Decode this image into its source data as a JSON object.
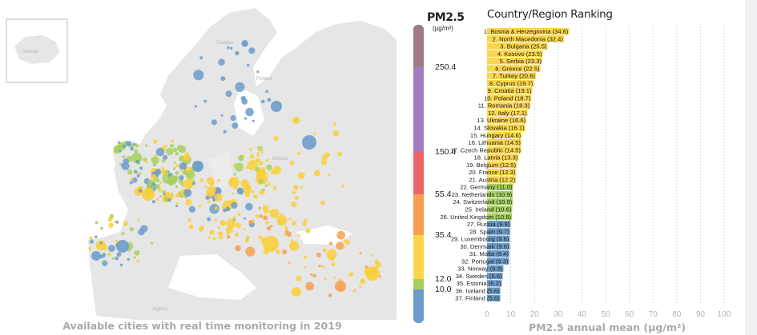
{
  "map": {
    "caption": "Available cities with real time monitoring in 2019",
    "country_labels": [
      "Iceland",
      "Sweden",
      "Finland",
      "Belarus",
      "Algeria"
    ]
  },
  "scale": {
    "title": "PM2.5",
    "unit": "(µg/m³)",
    "thresholds": [
      "250.4",
      "150.4",
      "55.4",
      "35.4",
      "12.0",
      "10.0"
    ],
    "band_colors": [
      "#a27a86",
      "#a27cbe",
      "#ef6464",
      "#f6a04f",
      "#fbd64a",
      "#a8d060",
      "#6c9ccb"
    ]
  },
  "chart_data": {
    "type": "bar",
    "orientation": "horizontal",
    "title": "Country/Region Ranking",
    "xlabel": "PM2.5 annual mean (µg/m³)",
    "xlim": [
      0,
      100
    ],
    "xticks": [
      "0",
      "10",
      "20",
      "30",
      "40",
      "50",
      "60",
      "70",
      "80",
      "90",
      "100"
    ],
    "grid": true,
    "categories": [
      "Bosnia & Herzegovina",
      "North Macedonia",
      "Bulgaria",
      "Kosovo",
      "Serbia",
      "Greece",
      "Turkey",
      "Cyprus",
      "Croatia",
      "Poland",
      "Romania",
      "Italy",
      "Ukraine",
      "Slovakia",
      "Hungary",
      "Lithuania",
      "Czech Republic",
      "Latvia",
      "Belgium",
      "France",
      "Austria",
      "Germany",
      "Netherlands",
      "Switzerland",
      "Ireland",
      "United Kingdom",
      "Russia",
      "Spain",
      "Luxembourg",
      "Denmark",
      "Malta",
      "Portugal",
      "Norway",
      "Sweden",
      "Estonia",
      "Iceland",
      "Finland"
    ],
    "values": [
      34.6,
      32.4,
      25.5,
      23.5,
      23.3,
      22.5,
      20.6,
      19.7,
      19.1,
      18.7,
      18.3,
      17.1,
      16.6,
      16.1,
      14.6,
      14.5,
      14.5,
      13.3,
      12.5,
      12.3,
      12.2,
      11.0,
      10.9,
      10.9,
      10.6,
      10.5,
      9.9,
      9.7,
      9.6,
      9.6,
      9.4,
      9.3,
      6.9,
      6.6,
      6.2,
      5.6,
      5.6
    ],
    "bar_labels": [
      "1. Bosnia & Herzegovina (34.6)",
      "2. North Macedonia (32.4)",
      "3. Bulgaria (25.5)",
      "4. Kosovo (23.5)",
      "5. Serbia (23.3)",
      "6. Greece (22.5)",
      "7. Turkey (20.6)",
      "8. Cyprus (19.7)",
      "9. Croatia (19.1)",
      "10. Poland (18.7)",
      "11. Romania (18.3)",
      "12. Italy (17.1)",
      "13. Ukraine (16.6)",
      "14. Slovakia (16.1)",
      "15. Hungary (14.6)",
      "16. Lithuania (14.5)",
      "17. Czech Republic (14.5)",
      "18. Latvia (13.3)",
      "19. Belgium (12.5)",
      "20. France (12.3)",
      "21. Austria (12.2)",
      "22. Germany (11.0)",
      "23. Netherlands (10.9)",
      "24. Switzerland (10.9)",
      "25. Ireland (10.6)",
      "26. United Kingdom (10.5)",
      "27. Russia (9.9)",
      "28. Spain (9.7)",
      "29. Luxembourg (9.6)",
      "30. Denmark (9.6)",
      "31. Malta (9.4)",
      "32. Portugal (9.3)",
      "33. Norway (6.9)",
      "34. Sweden (6.6)",
      "35. Estonia (6.2)",
      "36. Iceland (5.6)",
      "37. Finland (5.6)"
    ],
    "colors": {
      "yellow": "#fbd64a",
      "green": "#a8d060",
      "blue": "#6c9ccb"
    }
  }
}
